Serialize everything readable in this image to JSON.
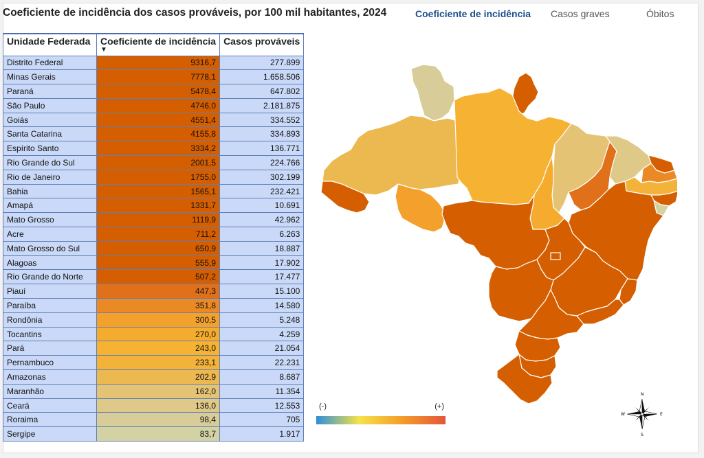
{
  "title": "Coeficiente de incidência dos casos prováveis, por 100 mil habitantes, 2024",
  "tabs": [
    {
      "label": "Coeficiente de incidência",
      "active": true
    },
    {
      "label": "Casos graves",
      "active": false
    },
    {
      "label": "Óbitos",
      "active": false
    }
  ],
  "table": {
    "headers": [
      "Unidade Federada",
      "Coeficiente de incidência",
      "Casos prováveis"
    ],
    "rows": [
      {
        "uf": "Distrito Federal",
        "coef": "9316,7",
        "cases": "277.899",
        "color": "#d55f00"
      },
      {
        "uf": "Minas Gerais",
        "coef": "7778,1",
        "cases": "1.658.506",
        "color": "#d55f00"
      },
      {
        "uf": "Paraná",
        "coef": "5478,4",
        "cases": "647.802",
        "color": "#d55f00"
      },
      {
        "uf": "São Paulo",
        "coef": "4746,0",
        "cases": "2.181.875",
        "color": "#d55f00"
      },
      {
        "uf": "Goiás",
        "coef": "4551,4",
        "cases": "334.552",
        "color": "#d55f00"
      },
      {
        "uf": "Santa Catarina",
        "coef": "4155,8",
        "cases": "334.893",
        "color": "#d55f00"
      },
      {
        "uf": "Espírito Santo",
        "coef": "3334,2",
        "cases": "136.771",
        "color": "#d55f00"
      },
      {
        "uf": "Rio Grande do Sul",
        "coef": "2001,5",
        "cases": "224.766",
        "color": "#d55f00"
      },
      {
        "uf": "Rio de Janeiro",
        "coef": "1755,0",
        "cases": "302.199",
        "color": "#d55f00"
      },
      {
        "uf": "Bahia",
        "coef": "1565,1",
        "cases": "232.421",
        "color": "#d55f00"
      },
      {
        "uf": "Amapá",
        "coef": "1331,7",
        "cases": "10.691",
        "color": "#d55f00"
      },
      {
        "uf": "Mato Grosso",
        "coef": "1119,9",
        "cases": "42.962",
        "color": "#d55f00"
      },
      {
        "uf": "Acre",
        "coef": "711,2",
        "cases": "6.263",
        "color": "#d55f00"
      },
      {
        "uf": "Mato Grosso do Sul",
        "coef": "650,9",
        "cases": "18.887",
        "color": "#d55f00"
      },
      {
        "uf": "Alagoas",
        "coef": "555,9",
        "cases": "17.902",
        "color": "#d55f00"
      },
      {
        "uf": "Rio Grande do Norte",
        "coef": "507,2",
        "cases": "17.477",
        "color": "#d55f00"
      },
      {
        "uf": "Piauí",
        "coef": "447,3",
        "cases": "15.100",
        "color": "#e1701a"
      },
      {
        "uf": "Paraíba",
        "coef": "351,8",
        "cases": "14.580",
        "color": "#eb8a24"
      },
      {
        "uf": "Rondônia",
        "coef": "300,5",
        "cases": "5.248",
        "color": "#f3a12c"
      },
      {
        "uf": "Tocantins",
        "coef": "270,0",
        "cases": "4.259",
        "color": "#f5ab2e"
      },
      {
        "uf": "Pará",
        "coef": "243,0",
        "cases": "21.054",
        "color": "#f6b232"
      },
      {
        "uf": "Pernambuco",
        "coef": "233,1",
        "cases": "22.231",
        "color": "#f3b23a"
      },
      {
        "uf": "Amazonas",
        "coef": "202,9",
        "cases": "8.687",
        "color": "#ecb850"
      },
      {
        "uf": "Maranhão",
        "coef": "162,0",
        "cases": "11.354",
        "color": "#e5c375"
      },
      {
        "uf": "Ceará",
        "coef": "136,0",
        "cases": "12.553",
        "color": "#dfc989"
      },
      {
        "uf": "Roraima",
        "coef": "98,4",
        "cases": "705",
        "color": "#d8cd98"
      },
      {
        "uf": "Sergipe",
        "coef": "83,7",
        "cases": "1.917",
        "color": "#d2d2a3"
      }
    ]
  },
  "map": {
    "regions": [
      {
        "name": "Roraima",
        "color": "#d8cd98"
      },
      {
        "name": "Amapá",
        "color": "#d55f00"
      },
      {
        "name": "Amazonas",
        "color": "#ecb850"
      },
      {
        "name": "Pará",
        "color": "#f6b232"
      },
      {
        "name": "Acre",
        "color": "#d55f00"
      },
      {
        "name": "Rondônia",
        "color": "#f3a12c"
      },
      {
        "name": "Maranhão",
        "color": "#e5c375"
      },
      {
        "name": "Tocantins",
        "color": "#f5ab2e"
      },
      {
        "name": "Piauí",
        "color": "#e1701a"
      },
      {
        "name": "Ceará",
        "color": "#dfc989"
      },
      {
        "name": "Rio Grande do Norte",
        "color": "#d55f00"
      },
      {
        "name": "Paraíba",
        "color": "#eb8a24"
      },
      {
        "name": "Pernambuco",
        "color": "#f3b23a"
      },
      {
        "name": "Alagoas",
        "color": "#d55f00"
      },
      {
        "name": "Sergipe",
        "color": "#d2d2a3"
      },
      {
        "name": "Bahia",
        "color": "#d55f00"
      },
      {
        "name": "Mato Grosso",
        "color": "#d55f00"
      },
      {
        "name": "Goiás",
        "color": "#d55f00"
      },
      {
        "name": "Distrito Federal",
        "color": "#d55f00"
      },
      {
        "name": "Minas Gerais",
        "color": "#d55f00"
      },
      {
        "name": "Espírito Santo",
        "color": "#d55f00"
      },
      {
        "name": "Mato Grosso do Sul",
        "color": "#d55f00"
      },
      {
        "name": "São Paulo",
        "color": "#d55f00"
      },
      {
        "name": "Rio de Janeiro",
        "color": "#d55f00"
      },
      {
        "name": "Paraná",
        "color": "#d55f00"
      },
      {
        "name": "Santa Catarina",
        "color": "#d55f00"
      },
      {
        "name": "Rio Grande do Sul",
        "color": "#d55f00"
      }
    ],
    "border_color": "#ffffff"
  },
  "legend": {
    "min_label": "(-)",
    "max_label": "(+)"
  },
  "compass": {
    "n": "N",
    "s": "S",
    "e": "E",
    "w": "W"
  },
  "chart_data": {
    "type": "table",
    "title": "Coeficiente de incidência dos casos prováveis, por 100 mil habitantes, 2024",
    "columns": [
      "Unidade Federada",
      "Coeficiente de incidência",
      "Casos prováveis"
    ],
    "categories": [
      "Distrito Federal",
      "Minas Gerais",
      "Paraná",
      "São Paulo",
      "Goiás",
      "Santa Catarina",
      "Espírito Santo",
      "Rio Grande do Sul",
      "Rio de Janeiro",
      "Bahia",
      "Amapá",
      "Mato Grosso",
      "Acre",
      "Mato Grosso do Sul",
      "Alagoas",
      "Rio Grande do Norte",
      "Piauí",
      "Paraíba",
      "Rondônia",
      "Tocantins",
      "Pará",
      "Pernambuco",
      "Amazonas",
      "Maranhão",
      "Ceará",
      "Roraima",
      "Sergipe"
    ],
    "series": [
      {
        "name": "Coeficiente de incidência",
        "values": [
          9316.7,
          7778.1,
          5478.4,
          4746.0,
          4551.4,
          4155.8,
          3334.2,
          2001.5,
          1755.0,
          1565.1,
          1331.7,
          1119.9,
          711.2,
          650.9,
          555.9,
          507.2,
          447.3,
          351.8,
          300.5,
          270.0,
          243.0,
          233.1,
          202.9,
          162.0,
          136.0,
          98.4,
          83.7
        ]
      },
      {
        "name": "Casos prováveis",
        "values": [
          277899,
          1658506,
          647802,
          2181875,
          334552,
          334893,
          136771,
          224766,
          302199,
          232421,
          10691,
          42962,
          6263,
          18887,
          17902,
          17477,
          15100,
          14580,
          5248,
          4259,
          21054,
          22231,
          8687,
          11354,
          12553,
          705,
          1917
        ]
      }
    ],
    "sort": "Coeficiente de incidência descending"
  }
}
